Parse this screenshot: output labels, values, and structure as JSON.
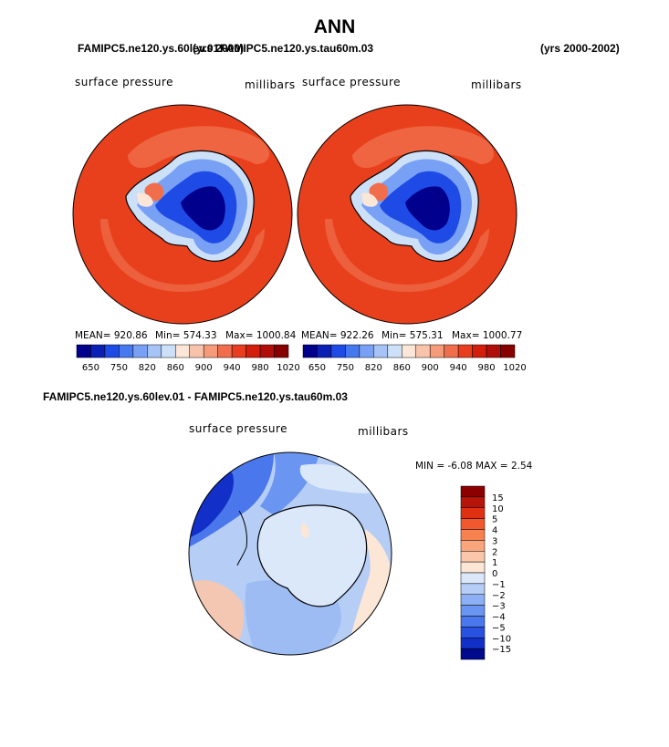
{
  "figure": {
    "title": "ANN",
    "left_case": "FAMIPC5.ne120.ys.60lev.01",
    "years_left": "(yrs 2000)",
    "right_case": "FAMIPC5.ne120.ys.tau60m.03",
    "years_right": "(yrs 2000-2002)"
  },
  "chart_data": [
    {
      "type": "heatmap",
      "projection": "south-polar-stereographic",
      "case": "FAMIPC5.ne120.ys.60lev.01",
      "title": "surface pressure",
      "units": "millibars",
      "mean_label": "MEAN=",
      "mean": "920.86",
      "min_label": "Min=",
      "min": "574.33",
      "max_label": "Max=",
      "max": "1000.84",
      "levels": [
        650,
        750,
        820,
        860,
        900,
        940,
        980,
        1020
      ],
      "colors": [
        "#00008c",
        "#0a1fb4",
        "#1e4be6",
        "#4678f0",
        "#78a0f5",
        "#a5c3f5",
        "#cce0f8",
        "#fbe6d8",
        "#f8c3aa",
        "#f59b7a",
        "#f06e4b",
        "#e83d1e",
        "#d21e0a",
        "#b00e08",
        "#870000"
      ]
    },
    {
      "type": "heatmap",
      "projection": "south-polar-stereographic",
      "case": "FAMIPC5.ne120.ys.tau60m.03",
      "title": "surface pressure",
      "units": "millibars",
      "mean_label": "MEAN=",
      "mean": "922.26",
      "min_label": "Min=",
      "min": "575.31",
      "max_label": "Max=",
      "max": "1000.77",
      "levels": [
        650,
        750,
        820,
        860,
        900,
        940,
        980,
        1020
      ],
      "colors": [
        "#00008c",
        "#0a1fb4",
        "#1e4be6",
        "#4678f0",
        "#78a0f5",
        "#a5c3f5",
        "#cce0f8",
        "#fbe6d8",
        "#f8c3aa",
        "#f59b7a",
        "#f06e4b",
        "#e83d1e",
        "#d21e0a",
        "#b00e08",
        "#870000"
      ]
    },
    {
      "type": "heatmap",
      "projection": "south-polar-stereographic",
      "title": "FAMIPC5.ne120.ys.60lev.01 - FAMIPC5.ne120.ys.tau60m.03",
      "field": "surface pressure",
      "units": "millibars",
      "min_label": "MIN =",
      "min": "-6.08",
      "max_label": "MAX =",
      "max": "2.54",
      "levels": [
        "15",
        "10",
        "5",
        "4",
        "3",
        "2",
        "1",
        "0",
        "−1",
        "−2",
        "−3",
        "−4",
        "−5",
        "−10",
        "−15"
      ],
      "colors": [
        "#8c0000",
        "#b8150a",
        "#e03012",
        "#f2582e",
        "#f7824f",
        "#f9a67e",
        "#fbc7ab",
        "#fce6d6",
        "#dbe8fa",
        "#b6cdf6",
        "#8cb0f3",
        "#6a95f0",
        "#4a78ec",
        "#2a52e0",
        "#1230c8",
        "#000a8c"
      ]
    }
  ]
}
